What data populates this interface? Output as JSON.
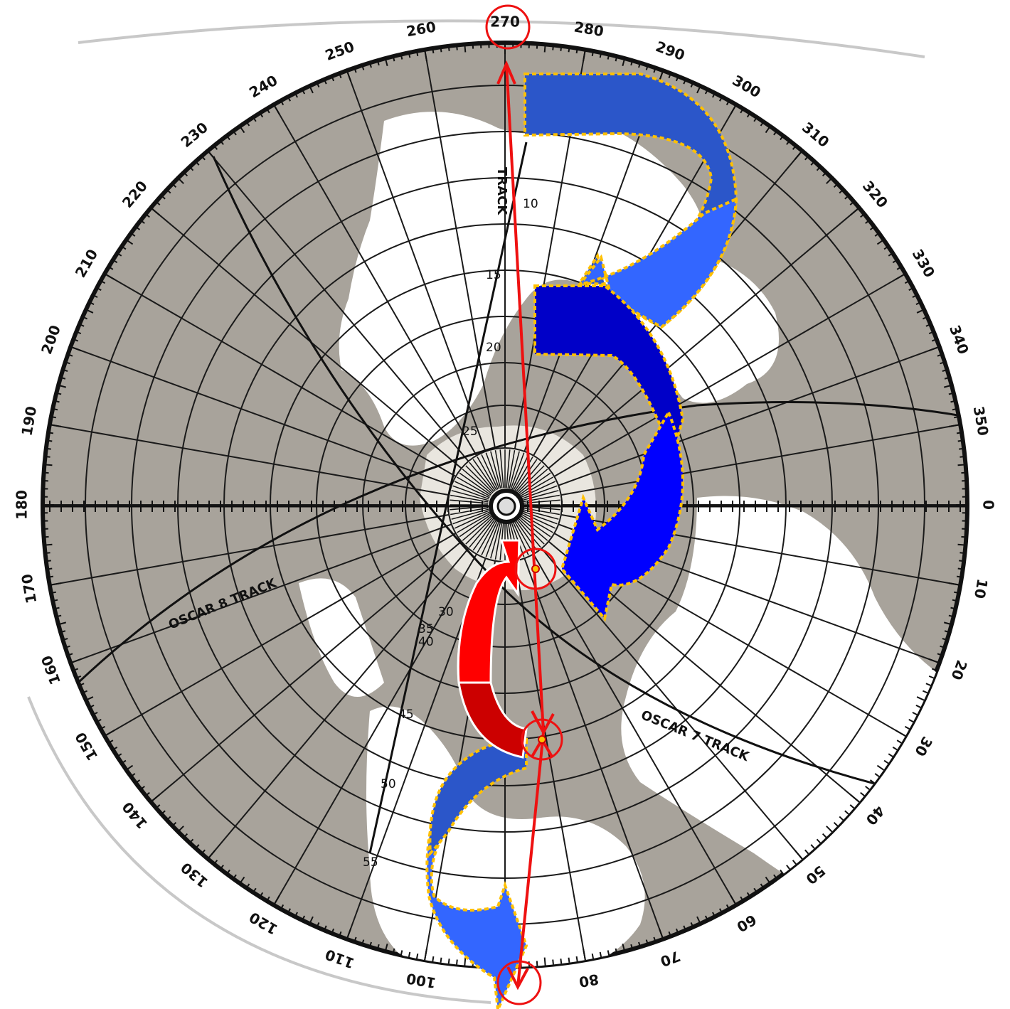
{
  "map": {
    "azimuth_labels": [
      "0",
      "10",
      "20",
      "30",
      "40",
      "50",
      "60",
      "70",
      "80",
      "100",
      "110",
      "120",
      "130",
      "140",
      "150",
      "160",
      "170",
      "180",
      "190",
      "200",
      "210",
      "220",
      "230",
      "240",
      "250",
      "260",
      "270",
      "280",
      "290",
      "300",
      "310",
      "320",
      "330",
      "340",
      "350"
    ],
    "highlighted_azimuth": "270",
    "track_labels": [
      "OSCAR 8 TRACK",
      "TRACK",
      "OSCAR 7 TRACK"
    ],
    "minute_labels": [
      "10",
      "15",
      "20",
      "25",
      "30",
      "35",
      "40",
      "45",
      "50",
      "55"
    ],
    "colors": {
      "ocean": "#ffffff",
      "land": "#a8a39b",
      "grid": "#1a1a1a",
      "red_line": "#ee1111",
      "blue_light": "#3366ff",
      "blue_mid": "#2b56c9",
      "blue_dark": "#0000c8",
      "blue_bright": "#0000ff",
      "red_arrow": "#ff0000",
      "red_dark": "#cc0000",
      "dotted_outline": "#ffc000"
    }
  }
}
